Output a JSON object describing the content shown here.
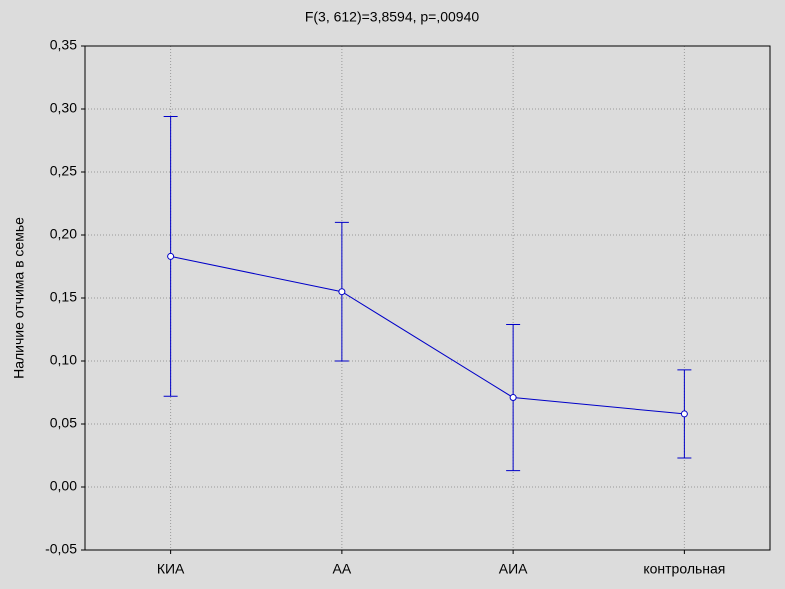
{
  "chart_data": {
    "type": "line-errorbar",
    "title": "F(3, 612)=3,8594, p=,00940",
    "y_label": "Наличие отчима в семье",
    "categories": [
      "КИА",
      "АА",
      "АИА",
      "контрольная"
    ],
    "series": [
      {
        "color": "#0000c8",
        "values": [
          0.183,
          0.155,
          0.071,
          0.058
        ],
        "errors": [
          0.111,
          0.055,
          0.058,
          0.035
        ]
      }
    ],
    "ylim": [
      -0.05,
      0.35
    ],
    "yticks": [
      {
        "value": -0.05,
        "label": "-0,05"
      },
      {
        "value": 0,
        "label": "0,00"
      },
      {
        "value": 0.05,
        "label": "0,05"
      },
      {
        "value": 0.1,
        "label": "0,10"
      },
      {
        "value": 0.15,
        "label": "0,15"
      },
      {
        "value": 0.2,
        "label": "0,20"
      },
      {
        "value": 0.25,
        "label": "0,25"
      },
      {
        "value": 0.3,
        "label": "0,30"
      },
      {
        "value": 0.35,
        "label": "0,35"
      }
    ],
    "grid": true
  }
}
